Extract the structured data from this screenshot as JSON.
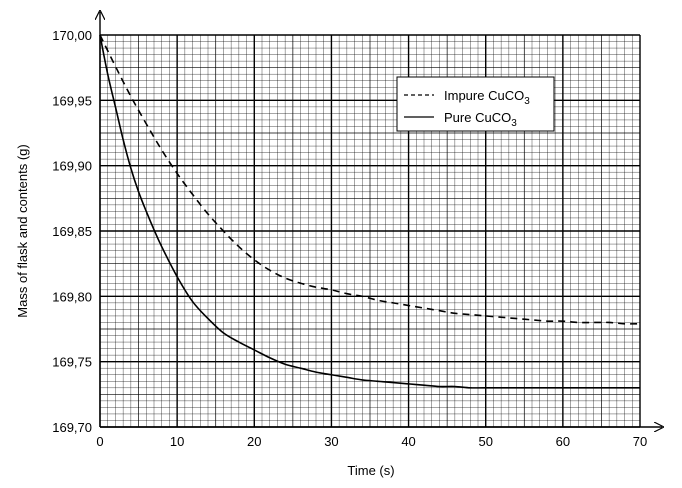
{
  "chart_data": {
    "type": "line",
    "xlabel": "Time (s)",
    "ylabel": "Mass of flask and contents (g)",
    "xlim": [
      0,
      70
    ],
    "ylim": [
      169.7,
      170.0
    ],
    "x_ticks": [
      0,
      10,
      20,
      30,
      40,
      50,
      60,
      70
    ],
    "x_tick_labels": [
      "0",
      "10",
      "20",
      "30",
      "40",
      "50",
      "60",
      "70"
    ],
    "y_ticks": [
      169.7,
      169.75,
      169.8,
      169.85,
      169.9,
      169.95,
      170.0
    ],
    "y_tick_labels": [
      "169,70",
      "169,75",
      "169,80",
      "169,85",
      "169,90",
      "169,95",
      "170,00"
    ],
    "grid": true,
    "legend_position": "top-right",
    "series": [
      {
        "name": "Impure CuCO3",
        "legend_label": "Impure CuCO",
        "legend_sub": "3",
        "style": "dashed",
        "x": [
          0,
          2,
          4,
          6,
          8,
          10,
          12,
          14,
          16,
          18,
          20,
          22,
          24,
          26,
          28,
          30,
          32,
          34,
          36,
          38,
          40,
          42,
          44,
          46,
          48,
          50,
          52,
          54,
          56,
          58,
          60,
          62,
          64,
          66,
          68,
          70
        ],
        "y": [
          170.0,
          169.976,
          169.953,
          169.932,
          169.912,
          169.894,
          169.878,
          169.863,
          169.85,
          169.838,
          169.828,
          169.82,
          169.814,
          169.81,
          169.807,
          169.805,
          169.802,
          169.8,
          169.797,
          169.795,
          169.793,
          169.791,
          169.789,
          169.787,
          169.786,
          169.785,
          169.784,
          169.783,
          169.782,
          169.781,
          169.781,
          169.78,
          169.78,
          169.78,
          169.779,
          169.779
        ]
      },
      {
        "name": "Pure CuCO3",
        "legend_label": "Pure CuCO",
        "legend_sub": "3",
        "style": "solid",
        "x": [
          0,
          1,
          2,
          3,
          4,
          5,
          6,
          7,
          8,
          10,
          12,
          14,
          16,
          18,
          20,
          22,
          24,
          26,
          28,
          30,
          32,
          34,
          36,
          38,
          40,
          42,
          44,
          46,
          48,
          50,
          55,
          60,
          65,
          70
        ],
        "y": [
          170.0,
          169.97,
          169.945,
          169.92,
          169.898,
          169.88,
          169.865,
          169.851,
          169.838,
          169.815,
          169.796,
          169.783,
          169.772,
          169.765,
          169.759,
          169.753,
          169.748,
          169.745,
          169.742,
          169.74,
          169.738,
          169.736,
          169.735,
          169.734,
          169.733,
          169.732,
          169.731,
          169.731,
          169.73,
          169.73,
          169.73,
          169.73,
          169.73,
          169.73
        ]
      }
    ]
  }
}
